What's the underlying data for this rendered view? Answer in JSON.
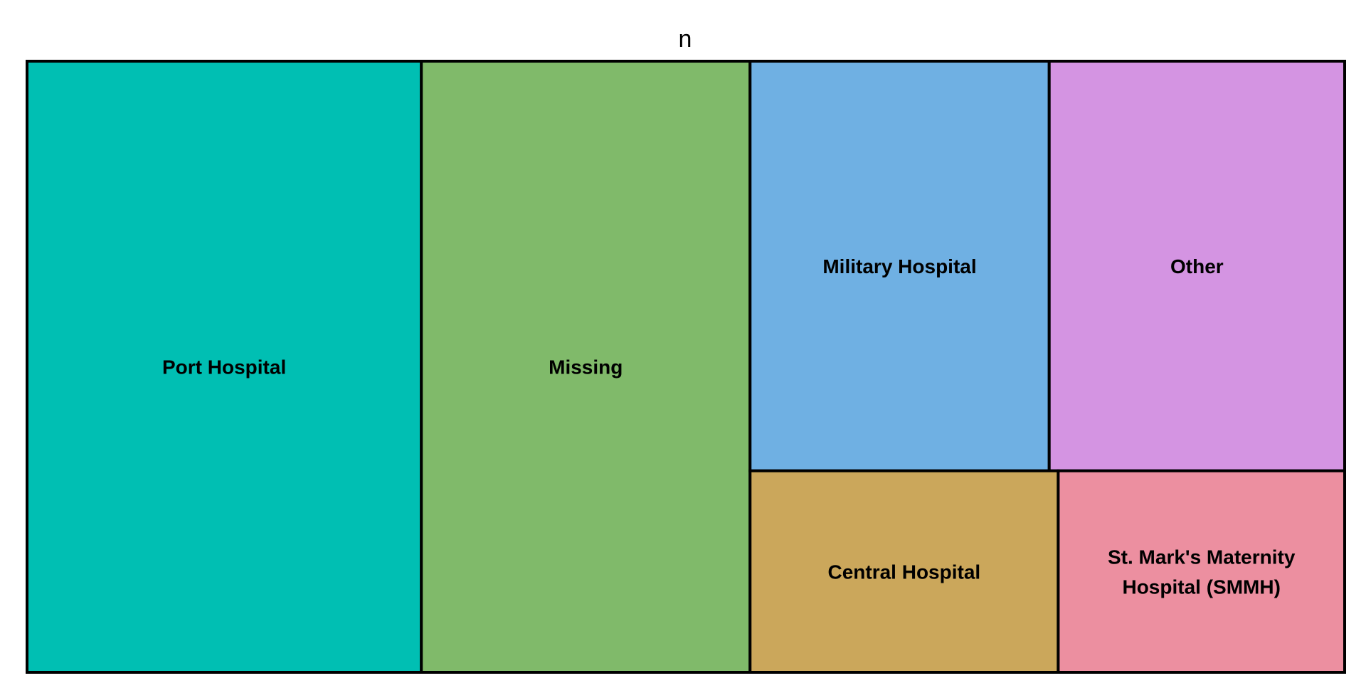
{
  "chart_data": {
    "type": "treemap",
    "title": "n",
    "items": [
      {
        "label": "Port Hospital",
        "value": 1762,
        "color": "#00BFB3"
      },
      {
        "label": "Missing",
        "value": 1469,
        "color": "#80BA6A"
      },
      {
        "label": "Military Hospital",
        "value": 896,
        "color": "#6FB0E3"
      },
      {
        "label": "Other",
        "value": 885,
        "color": "#D494E2"
      },
      {
        "label": "Central Hospital",
        "value": 454,
        "color": "#CBA75B"
      },
      {
        "label": "St. Mark's Maternity Hospital (SMMH)",
        "value": 422,
        "color": "#EC8FA0"
      }
    ]
  }
}
